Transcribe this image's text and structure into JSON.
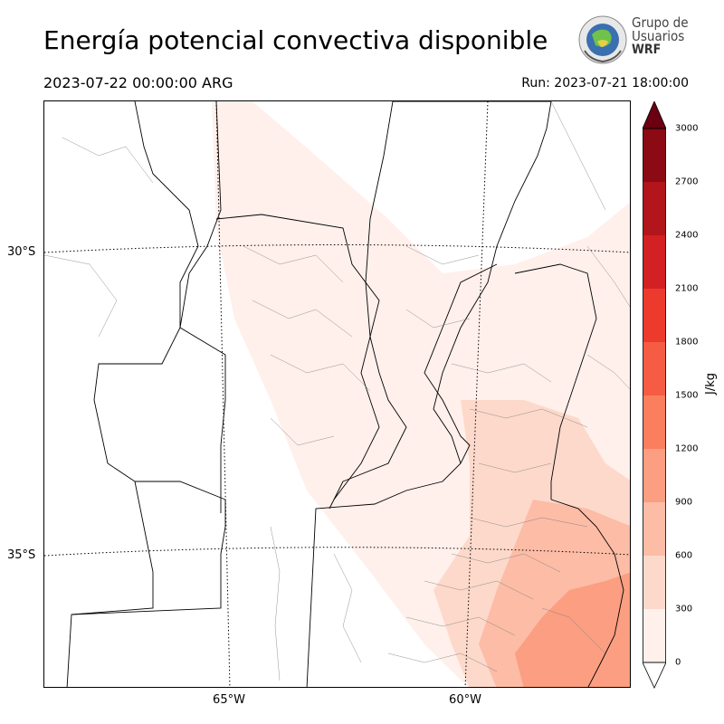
{
  "header": {
    "title": "Energía potencial convectiva disponible",
    "valid_time": "2023-07-22 00:00:00 ARG",
    "run_time": "Run: 2023-07-21 18:00:00"
  },
  "logo": {
    "line1": "Grupo de",
    "line2": "Usuarios",
    "line3": "WRF"
  },
  "map": {
    "lat_labels": [
      "30°S",
      "35°S"
    ],
    "lon_labels": [
      "65°W",
      "60°W"
    ]
  },
  "colorbar": {
    "unit": "J/kg",
    "ticks": [
      "0",
      "300",
      "600",
      "900",
      "1200",
      "1500",
      "1800",
      "2100",
      "2400",
      "2700",
      "3000"
    ],
    "colors": [
      "#fff0eb",
      "#fdd9cb",
      "#fcbca6",
      "#fc9e81",
      "#fb7e5e",
      "#f65c43",
      "#ec3a2d",
      "#d22023",
      "#b2151b",
      "#8b0a13",
      "#6b0011"
    ]
  }
}
